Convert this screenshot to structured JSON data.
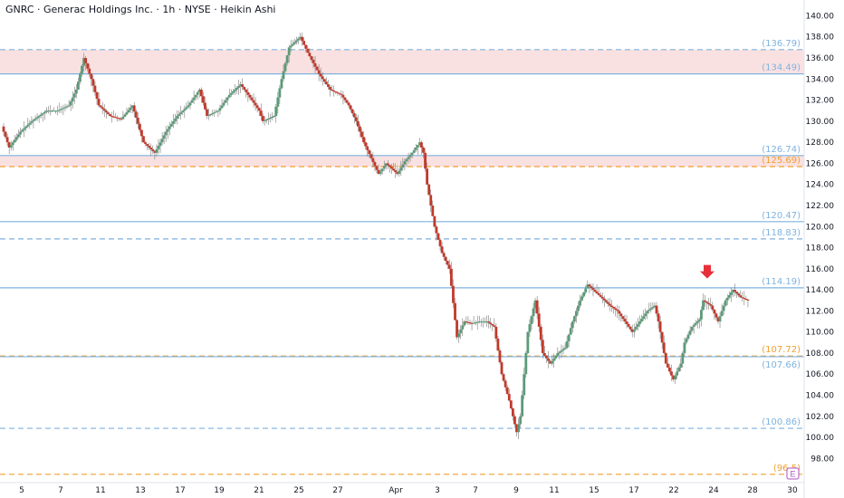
{
  "header": {
    "title": "GNRC · Generac Holdings Inc. · 1h · NYSE · Heikin Ashi"
  },
  "colors": {
    "up": "#5b9a78",
    "down": "#c0392b",
    "blue_level": "#7fb2df",
    "orange_level": "#f0a030",
    "zone_fill": "#f8d7d7",
    "arrow": "#e8303a",
    "earnings": "#b04fc4"
  },
  "chart_data": {
    "type": "candlestick",
    "style": "Heikin Ashi",
    "interval": "1h",
    "symbol": "GNRC",
    "exchange": "NYSE",
    "ylim": [
      97,
      141.5
    ],
    "y_ticks": [
      "98.00",
      "100.00",
      "102.00",
      "104.00",
      "106.00",
      "108.00",
      "110.00",
      "112.00",
      "114.00",
      "116.00",
      "118.00",
      "120.00",
      "122.00",
      "124.00",
      "126.00",
      "128.00",
      "130.00",
      "132.00",
      "134.00",
      "136.00",
      "138.00",
      "140.00"
    ],
    "x_ticks": [
      "5",
      "7",
      "11",
      "13",
      "17",
      "19",
      "21",
      "25",
      "27",
      "Apr",
      "3",
      "7",
      "9",
      "11",
      "15",
      "17",
      "22",
      "24",
      "28",
      "30"
    ],
    "zones": [
      {
        "from": 134.49,
        "to": 136.79
      },
      {
        "from": 125.69,
        "to": 126.74
      }
    ],
    "levels": [
      {
        "value": 136.79,
        "label": "(136.79)",
        "color": "blue",
        "style": "dashed"
      },
      {
        "value": 134.49,
        "label": "(134.49)",
        "color": "blue",
        "style": "solid"
      },
      {
        "value": 126.74,
        "label": "(126.74)",
        "color": "blue",
        "style": "solid"
      },
      {
        "value": 125.69,
        "label": "(125.69)",
        "color": "orange",
        "style": "dashed"
      },
      {
        "value": 120.47,
        "label": "(120.47)",
        "color": "blue",
        "style": "solid"
      },
      {
        "value": 118.83,
        "label": "(118.83)",
        "color": "blue",
        "style": "dashed"
      },
      {
        "value": 114.19,
        "label": "(114.19)",
        "color": "blue",
        "style": "solid"
      },
      {
        "value": 107.72,
        "label": "(107.72)",
        "color": "orange",
        "style": "dashed"
      },
      {
        "value": 107.66,
        "label": "(107.66)",
        "color": "blue",
        "style": "solid"
      },
      {
        "value": 100.86,
        "label": "(100.86)",
        "color": "blue",
        "style": "dashed"
      },
      {
        "value": 96.5,
        "label": "(96.5)",
        "color": "orange",
        "style": "dashed"
      }
    ],
    "anchors": [
      [
        0,
        129.5
      ],
      [
        4,
        127.5
      ],
      [
        10,
        129
      ],
      [
        16,
        130
      ],
      [
        24,
        131
      ],
      [
        30,
        131
      ],
      [
        36,
        131.5
      ],
      [
        40,
        133
      ],
      [
        44,
        136
      ],
      [
        48,
        134
      ],
      [
        52,
        131.5
      ],
      [
        58,
        130.5
      ],
      [
        64,
        130.2
      ],
      [
        70,
        131.5
      ],
      [
        76,
        128
      ],
      [
        82,
        127
      ],
      [
        88,
        129
      ],
      [
        94,
        130.5
      ],
      [
        100,
        131.5
      ],
      [
        106,
        133
      ],
      [
        110,
        130.5
      ],
      [
        116,
        131
      ],
      [
        122,
        132.5
      ],
      [
        128,
        133.5
      ],
      [
        134,
        132
      ],
      [
        138,
        131
      ],
      [
        140,
        130
      ],
      [
        146,
        130.5
      ],
      [
        150,
        134
      ],
      [
        154,
        137
      ],
      [
        160,
        138
      ],
      [
        164,
        136.5
      ],
      [
        170,
        134.5
      ],
      [
        176,
        133
      ],
      [
        182,
        132.5
      ],
      [
        186,
        131.5
      ],
      [
        190,
        130
      ],
      [
        194,
        128
      ],
      [
        198,
        126.5
      ],
      [
        202,
        125
      ],
      [
        206,
        126
      ],
      [
        212,
        125
      ],
      [
        216,
        126.2
      ],
      [
        220,
        127
      ],
      [
        224,
        128
      ],
      [
        226,
        127
      ],
      [
        228,
        124
      ],
      [
        232,
        120
      ],
      [
        236,
        117.5
      ],
      [
        240,
        116
      ],
      [
        244,
        109.5
      ],
      [
        248,
        111
      ],
      [
        252,
        110.8
      ],
      [
        256,
        111
      ],
      [
        260,
        111
      ],
      [
        264,
        110.5
      ],
      [
        268,
        106
      ],
      [
        272,
        103.5
      ],
      [
        276,
        100.5
      ],
      [
        278,
        102
      ],
      [
        282,
        110
      ],
      [
        286,
        113
      ],
      [
        290,
        108
      ],
      [
        294,
        107
      ],
      [
        298,
        108
      ],
      [
        302,
        108.5
      ],
      [
        306,
        111
      ],
      [
        310,
        113
      ],
      [
        314,
        114.5
      ],
      [
        320,
        113.5
      ],
      [
        326,
        112.5
      ],
      [
        330,
        112
      ],
      [
        334,
        111
      ],
      [
        338,
        110
      ],
      [
        342,
        111
      ],
      [
        346,
        112
      ],
      [
        350,
        112.5
      ],
      [
        352,
        111
      ],
      [
        356,
        107
      ],
      [
        360,
        105.5
      ],
      [
        364,
        107
      ],
      [
        366,
        109
      ],
      [
        370,
        110.5
      ],
      [
        374,
        111.2
      ],
      [
        376,
        113
      ],
      [
        380,
        112.5
      ],
      [
        384,
        111
      ],
      [
        388,
        113
      ],
      [
        392,
        114
      ],
      [
        396,
        113.3
      ],
      [
        400,
        113
      ]
    ],
    "earnings_marker": "E",
    "signal": {
      "type": "down-arrow",
      "near_value": 115.5
    }
  }
}
